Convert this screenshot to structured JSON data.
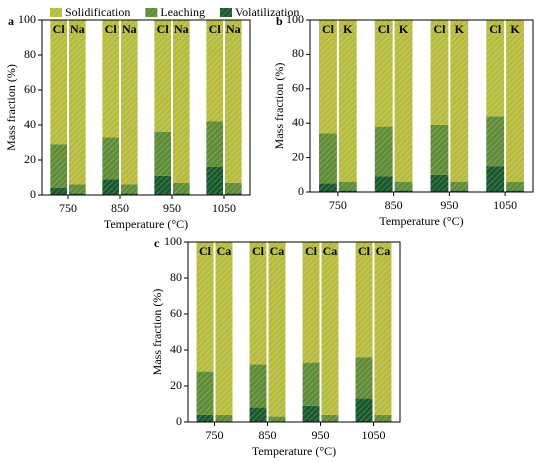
{
  "chart_data": [
    {
      "type": "stacked_bar",
      "panel": "a",
      "xlabel": "Temperature (°C)",
      "ylabel": "Mass fraction (%)",
      "categories": [
        "750",
        "850",
        "950",
        "1050"
      ],
      "stacks": [
        "Cl",
        "Na"
      ],
      "ylim": [
        0,
        100
      ],
      "yticks": [
        0,
        20,
        40,
        60,
        80,
        100
      ],
      "legend": "top",
      "series": [
        {
          "name": "Solidification",
          "color": "#b7bb3c",
          "values": [
            [
              71,
              94
            ],
            [
              67,
              94
            ],
            [
              64,
              93
            ],
            [
              58,
              93
            ]
          ]
        },
        {
          "name": "Leaching",
          "color": "#5e8c35",
          "values": [
            [
              25,
              5
            ],
            [
              24,
              5
            ],
            [
              25,
              6
            ],
            [
              26,
              6
            ]
          ]
        },
        {
          "name": "Volatilization",
          "color": "#17582b",
          "values": [
            [
              4,
              1
            ],
            [
              9,
              1
            ],
            [
              11,
              1
            ],
            [
              16,
              1
            ]
          ]
        }
      ]
    },
    {
      "type": "stacked_bar",
      "panel": "b",
      "xlabel": "Temperature (°C)",
      "ylabel": "Mass fraction (%)",
      "categories": [
        "750",
        "850",
        "950",
        "1050"
      ],
      "stacks": [
        "Cl",
        "K"
      ],
      "ylim": [
        0,
        100
      ],
      "yticks": [
        0,
        20,
        40,
        60,
        80,
        100
      ],
      "series": [
        {
          "color": "#b7bb3c",
          "values": [
            [
              66,
              94
            ],
            [
              62,
              94
            ],
            [
              61,
              94
            ],
            [
              56,
              94
            ]
          ]
        },
        {
          "color": "#5e8c35",
          "values": [
            [
              29,
              5
            ],
            [
              29,
              5
            ],
            [
              29,
              5
            ],
            [
              29,
              5
            ]
          ]
        },
        {
          "color": "#17582b",
          "values": [
            [
              5,
              1
            ],
            [
              9,
              1
            ],
            [
              10,
              1
            ],
            [
              15,
              1
            ]
          ]
        }
      ]
    },
    {
      "type": "stacked_bar",
      "panel": "c",
      "xlabel": "Temperature (°C)",
      "ylabel": "Mass fraction (%)",
      "categories": [
        "750",
        "850",
        "950",
        "1050"
      ],
      "stacks": [
        "Cl",
        "Ca"
      ],
      "ylim": [
        0,
        100
      ],
      "yticks": [
        0,
        20,
        40,
        60,
        80,
        100
      ],
      "series": [
        {
          "color": "#b7bb3c",
          "values": [
            [
              72,
              96
            ],
            [
              68,
              97
            ],
            [
              67,
              96
            ],
            [
              64,
              96
            ]
          ]
        },
        {
          "color": "#5e8c35",
          "values": [
            [
              24,
              4
            ],
            [
              24,
              3
            ],
            [
              24,
              4
            ],
            [
              23,
              4
            ]
          ]
        },
        {
          "color": "#17582b",
          "values": [
            [
              4,
              0
            ],
            [
              8,
              0
            ],
            [
              9,
              0
            ],
            [
              13,
              0
            ]
          ]
        }
      ]
    }
  ]
}
